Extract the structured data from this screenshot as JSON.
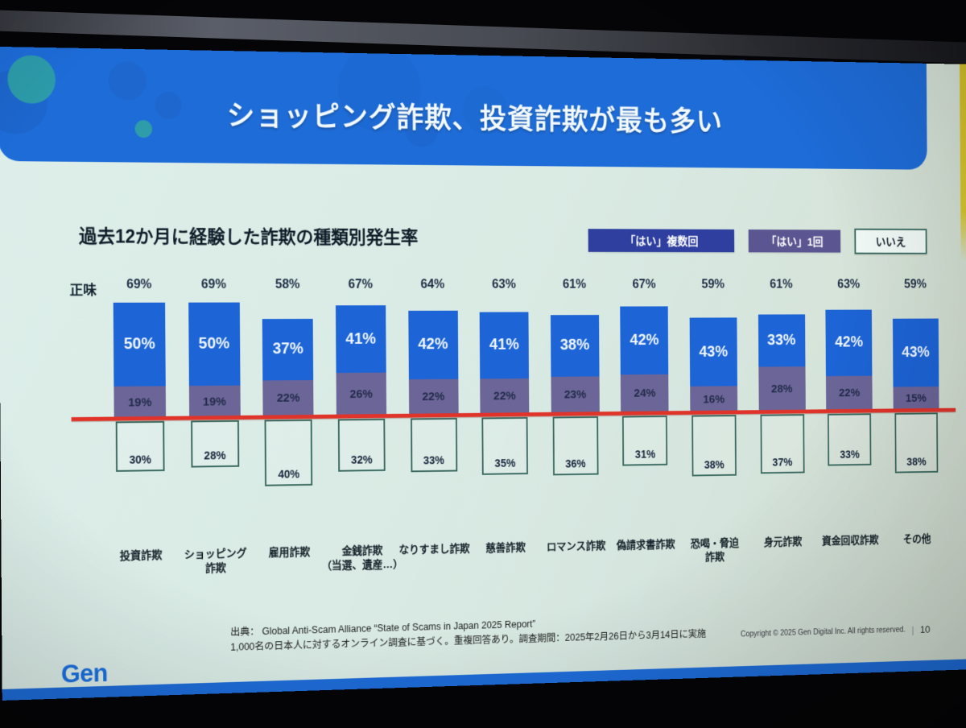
{
  "slide": {
    "title": "ショッピング詐欺、投資詐欺が最も多い",
    "logo_text": "Gen",
    "colors": {
      "header_blue": "#1e6cd8",
      "bar_blue": "#1d64d6",
      "bar_purple": "#6c6598",
      "legend_blue": "#2e3f9f",
      "legend_purple": "#5b5591",
      "baseline_red": "#e0332a",
      "accent_yellow": "#d8c731",
      "slide_background": "#deeee9"
    },
    "footer": {
      "source_line1": "出典： Global Anti-Scam Alliance “State of Scams in Japan 2025 Report”",
      "source_line2": "1,000名の日本人に対するオンライン調査に基づく。重複回答あり。調査期間：2025年2月26日から3月14日に実施",
      "copyright": "Copyright © 2025 Gen Digital Inc. All rights reserved.",
      "separator": "|",
      "page_number": "10"
    }
  },
  "chart_data": {
    "type": "bar",
    "stacked": true,
    "title": "過去12か月に経験した詐欺の種類別発生率",
    "net_axis_label": "正味",
    "unit": "%",
    "legend_position": "top-right",
    "legend": [
      "「はい」複数回",
      "「はい」1回",
      "いいえ"
    ],
    "baseline_note": "red horizontal line separates はい (above) from いいえ (below)",
    "categories": [
      "投資詐欺",
      "ショッピング\n詐欺",
      "雇用詐欺",
      "金銭詐欺\n（当選、遺産…）",
      "なりすまし詐欺",
      "慈善詐欺",
      "ロマンス詐欺",
      "偽請求書詐欺",
      "恐喝・脅迫\n詐欺",
      "身元詐欺",
      "資金回収詐欺",
      "その他"
    ],
    "net_values": [
      69,
      69,
      58,
      67,
      64,
      63,
      61,
      67,
      59,
      61,
      63,
      59
    ],
    "net_labels": [
      "69%",
      "69%",
      "58%",
      "67%",
      "64%",
      "63%",
      "61%",
      "67%",
      "59%",
      "61%",
      "63%",
      "59%"
    ],
    "series": [
      {
        "name": "「はい」複数回",
        "values": [
          50,
          50,
          37,
          41,
          42,
          41,
          38,
          42,
          43,
          33,
          42,
          43
        ],
        "labels": [
          "50%",
          "50%",
          "37%",
          "41%",
          "42%",
          "41%",
          "38%",
          "42%",
          "43%",
          "33%",
          "42%",
          "43%"
        ]
      },
      {
        "name": "「はい」1回",
        "values": [
          19,
          19,
          22,
          26,
          22,
          22,
          23,
          24,
          16,
          28,
          22,
          15
        ],
        "labels": [
          "19%",
          "19%",
          "22%",
          "26%",
          "22%",
          "22%",
          "23%",
          "24%",
          "16%",
          "28%",
          "22%",
          "15%"
        ]
      },
      {
        "name": "いいえ",
        "values": [
          30,
          28,
          40,
          32,
          33,
          35,
          36,
          31,
          38,
          37,
          33,
          38
        ],
        "labels": [
          "30%",
          "28%",
          "40%",
          "32%",
          "33%",
          "35%",
          "36%",
          "31%",
          "38%",
          "37%",
          "33%",
          "38%"
        ]
      }
    ]
  }
}
